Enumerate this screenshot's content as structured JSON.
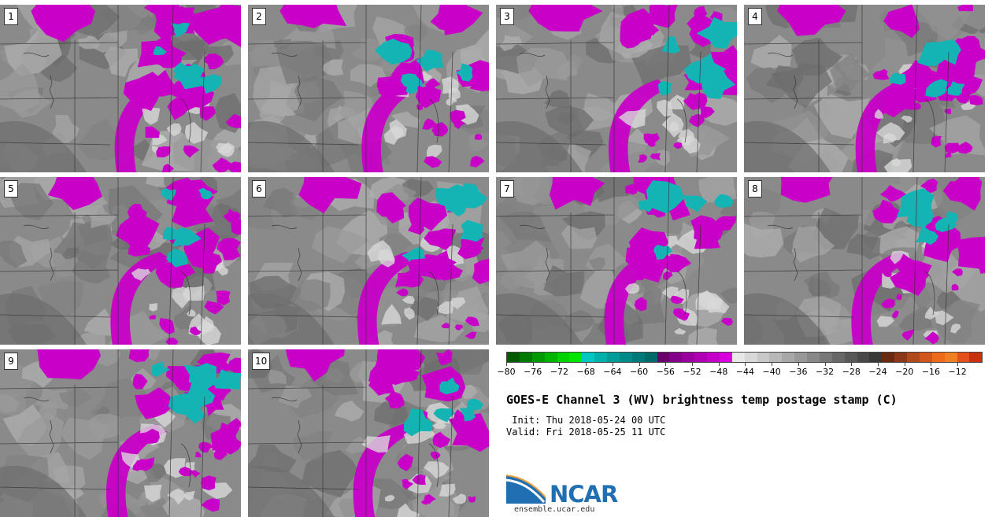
{
  "panels": [
    {
      "label": "1"
    },
    {
      "label": "2"
    },
    {
      "label": "3"
    },
    {
      "label": "4"
    },
    {
      "label": "5"
    },
    {
      "label": "6"
    },
    {
      "label": "7"
    },
    {
      "label": "8"
    },
    {
      "label": "9"
    },
    {
      "label": "10"
    }
  ],
  "colorbar": {
    "ticks": [
      "−80",
      "−76",
      "−72",
      "−68",
      "−64",
      "−60",
      "−56",
      "−52",
      "−48",
      "−44",
      "−40",
      "−36",
      "−32",
      "−28",
      "−24",
      "−20",
      "−16",
      "−12"
    ],
    "colors": [
      "#005a00",
      "#007a00",
      "#009a00",
      "#00b400",
      "#00d200",
      "#00e600",
      "#00c8c0",
      "#00b0aa",
      "#009c98",
      "#008a88",
      "#007a78",
      "#006a68",
      "#6a006a",
      "#85008a",
      "#9a00a0",
      "#b000b4",
      "#c400c8",
      "#d800dc",
      "#e8e8e8",
      "#d8d8d8",
      "#c8c8c8",
      "#b8b8b8",
      "#a8a8a8",
      "#989898",
      "#888888",
      "#787878",
      "#686868",
      "#585858",
      "#484848",
      "#383838",
      "#6a2a10",
      "#8a3818",
      "#b04a1a",
      "#d0561c",
      "#ec6a1a",
      "#f07e22",
      "#e4501a",
      "#c8300e"
    ]
  },
  "title": "GOES-E Channel 3 (WV) brightness temp postage stamp (C)",
  "init_line": " Init: Thu 2018-05-24 00 UTC",
  "valid_line": "Valid: Fri 2018-05-25 11 UTC",
  "logo": {
    "name": "NCAR",
    "url": "ensemble.ucar.edu"
  },
  "colors": {
    "magenta": "#c800c8",
    "cyan": "#14b4b4",
    "gray_bg": "#8a8a8a",
    "ncar_blue": "#1f6fb2"
  }
}
